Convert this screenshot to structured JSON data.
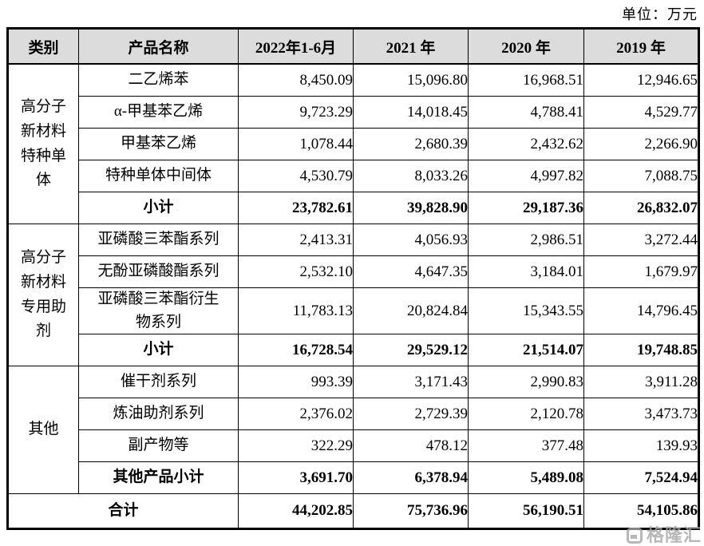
{
  "unit_label": "单位：万元",
  "watermark": {
    "brand": "格隆汇"
  },
  "table": {
    "headers": [
      "类别",
      "产品名称",
      "2022年1-6月",
      "2021 年",
      "2020 年",
      "2019 年"
    ],
    "groups": [
      {
        "category": "高分子新材料特种单体",
        "rows": [
          {
            "name": "二乙烯苯",
            "values": [
              "8,450.09",
              "15,096.80",
              "16,968.51",
              "12,946.65"
            ]
          },
          {
            "name": "α-甲基苯乙烯",
            "values": [
              "9,723.29",
              "14,018.45",
              "4,788.41",
              "4,529.77"
            ]
          },
          {
            "name": "甲基苯乙烯",
            "values": [
              "1,078.44",
              "2,680.39",
              "2,432.62",
              "2,266.90"
            ]
          },
          {
            "name": "特种单体中间体",
            "values": [
              "4,530.79",
              "8,033.26",
              "4,997.82",
              "7,088.75"
            ]
          }
        ],
        "subtotal": {
          "label": "小计",
          "values": [
            "23,782.61",
            "39,828.90",
            "29,187.36",
            "26,832.07"
          ]
        }
      },
      {
        "category": "高分子新材料专用助剂",
        "rows": [
          {
            "name": "亚磷酸三苯酯系列",
            "values": [
              "2,413.31",
              "4,056.93",
              "2,986.51",
              "3,272.44"
            ]
          },
          {
            "name": "无酚亚磷酸酯系列",
            "values": [
              "2,532.10",
              "4,647.35",
              "3,184.01",
              "1,679.97"
            ]
          },
          {
            "name": "亚磷酸三苯酯衍生\n物系列",
            "values": [
              "11,783.13",
              "20,824.84",
              "15,343.55",
              "14,796.45"
            ]
          }
        ],
        "subtotal": {
          "label": "小计",
          "values": [
            "16,728.54",
            "29,529.12",
            "21,514.07",
            "19,748.85"
          ]
        }
      },
      {
        "category": "其他",
        "rows": [
          {
            "name": "催干剂系列",
            "values": [
              "993.39",
              "3,171.43",
              "2,990.83",
              "3,911.28"
            ]
          },
          {
            "name": "炼油助剂系列",
            "values": [
              "2,376.02",
              "2,729.39",
              "2,120.78",
              "3,473.73"
            ]
          },
          {
            "name": "副产物等",
            "values": [
              "322.29",
              "478.12",
              "377.48",
              "139.93"
            ]
          }
        ],
        "subtotal": {
          "label": "其他产品小计",
          "values": [
            "3,691.70",
            "6,378.94",
            "5,489.08",
            "7,524.94"
          ]
        }
      }
    ],
    "total": {
      "label": "合计",
      "values": [
        "44,202.85",
        "75,736.96",
        "56,190.51",
        "54,105.86"
      ]
    }
  }
}
